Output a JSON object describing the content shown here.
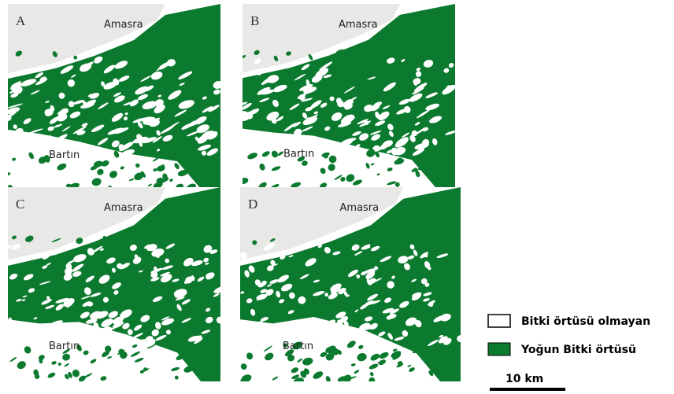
{
  "panels": [
    {
      "letter": "A",
      "north": "Amasra",
      "south": "Bartın"
    },
    {
      "letter": "B",
      "north": "Amasra",
      "south": "Bartın"
    },
    {
      "letter": "C",
      "north": "Amasra",
      "south": "Bartın"
    },
    {
      "letter": "D",
      "north": "Amasra",
      "south": "Bartın"
    }
  ],
  "legend": [
    "Bitki örtüsü olmayan",
    "Yoğun Bitki örtüsü"
  ],
  "scale": "10 km"
}
